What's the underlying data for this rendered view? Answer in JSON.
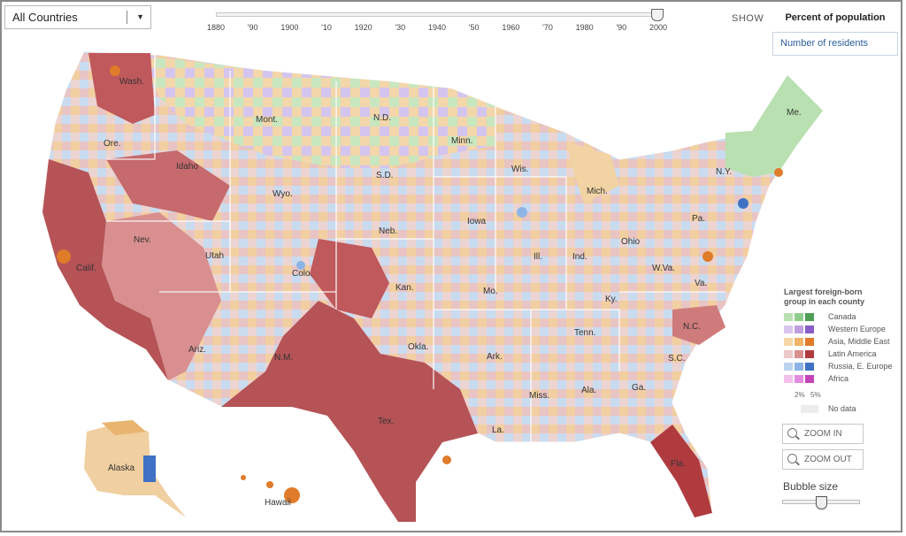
{
  "country_select": {
    "value": "All Countries",
    "arrow": "▼"
  },
  "timeline": {
    "ticks": [
      "1880",
      "'90",
      "1900",
      "'10",
      "1920",
      "'30",
      "1940",
      "'50",
      "1960",
      "'70",
      "1980",
      "'90",
      "2000"
    ],
    "selected": "2000"
  },
  "show": {
    "label": "SHOW",
    "tabs": [
      {
        "label": "Percent of population",
        "active": true
      },
      {
        "label": "Number of residents",
        "active": false
      }
    ]
  },
  "map": {
    "states": [
      "Wash.",
      "Mont.",
      "N.D.",
      "Minn.",
      "Me.",
      "Ore.",
      "Idaho",
      "Wyo.",
      "S.D.",
      "Wis.",
      "Mich.",
      "N.Y.",
      "Neb.",
      "Iowa",
      "Pa.",
      "Nev.",
      "Calif.",
      "Utah",
      "Colo.",
      "Kan.",
      "Mo.",
      "Ill.",
      "Ind.",
      "Ohio",
      "W.Va.",
      "Va.",
      "Ky.",
      "Tenn.",
      "N.C.",
      "S.C.",
      "Ariz.",
      "N.M.",
      "Okla.",
      "Ark.",
      "Miss.",
      "Ala.",
      "Ga.",
      "Tex.",
      "La.",
      "Fla.",
      "Alaska",
      "Hawaii"
    ]
  },
  "legend": {
    "title": "Largest foreign-born group in each county",
    "groups": [
      {
        "label": "Canada",
        "colors": [
          "#b9e0b0",
          "#8fce8a",
          "#4e9d55"
        ]
      },
      {
        "label": "Western Europe",
        "colors": [
          "#d9c6ee",
          "#bf9fe0",
          "#8a5cc7"
        ]
      },
      {
        "label": "Asia, Middle East",
        "colors": [
          "#f6d6a6",
          "#f0b468",
          "#e07b2a"
        ]
      },
      {
        "label": "Latin America",
        "colors": [
          "#ecc8c8",
          "#d98f8f",
          "#b03b3f"
        ]
      },
      {
        "label": "Russia, E. Europe",
        "colors": [
          "#bcd3f0",
          "#8db4e6",
          "#3f72c4"
        ]
      },
      {
        "label": "Africa",
        "colors": [
          "#f3c0ec",
          "#e48be0",
          "#c543b8"
        ]
      }
    ],
    "scale_low": "2%",
    "scale_high": "5%",
    "no_data": "No data"
  },
  "zoom": {
    "in_label": "ZOOM IN",
    "out_label": "ZOOM OUT"
  },
  "bubble": {
    "label": "Bubble size"
  }
}
